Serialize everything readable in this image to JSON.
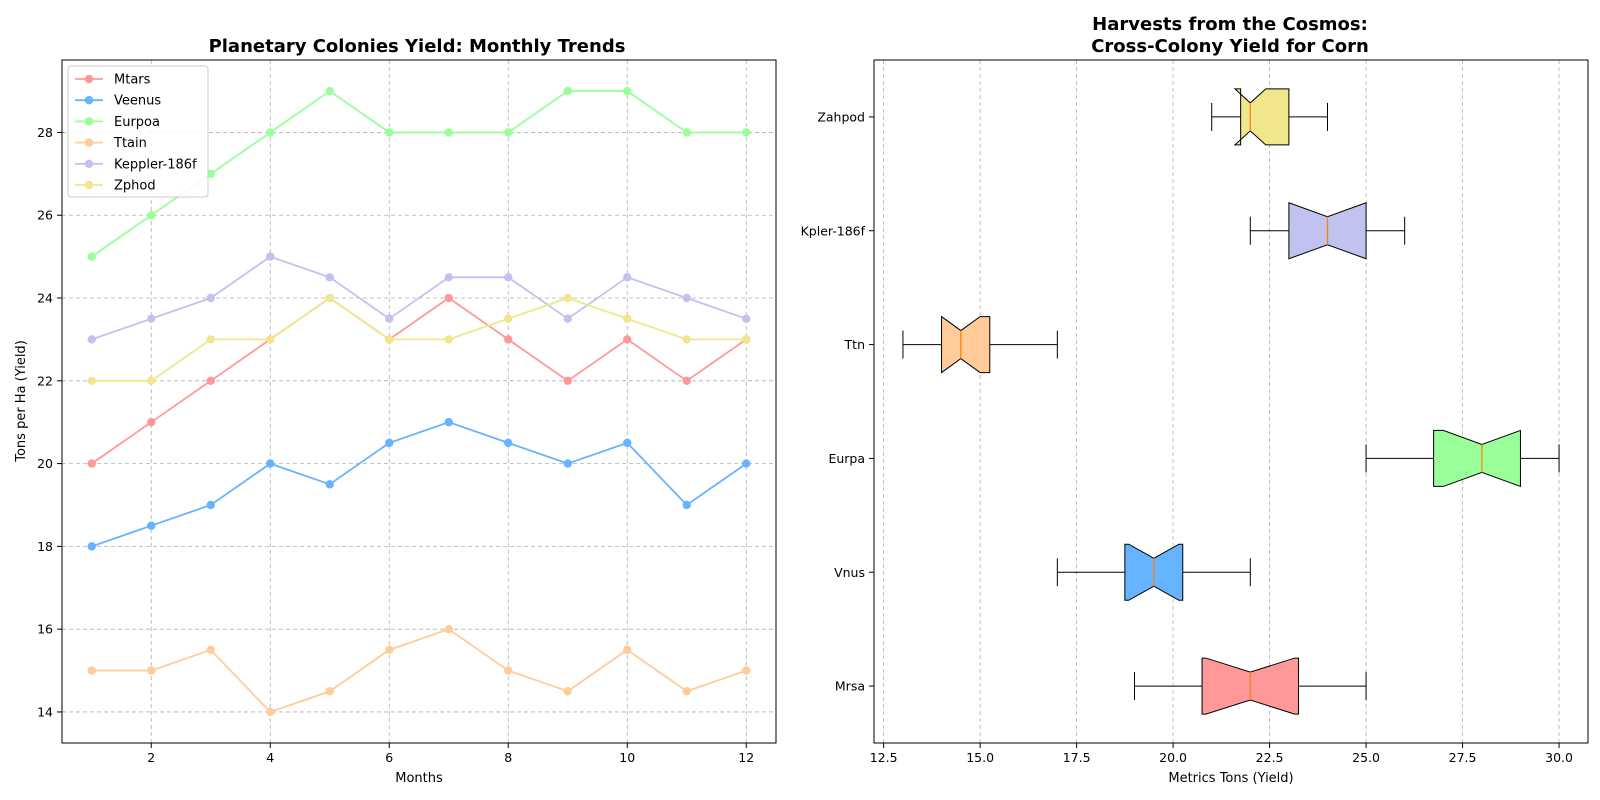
{
  "chart_data": [
    {
      "type": "line",
      "title": "Planetary Colonies Yield: Monthly Trends",
      "xlabel": "Months",
      "ylabel": "Tons per Ha (Yield)",
      "xlim": [
        0.5,
        12.5
      ],
      "ylim": [
        13.25,
        29.75
      ],
      "xticks": [
        2,
        4,
        6,
        8,
        10,
        12
      ],
      "yticks": [
        14,
        16,
        18,
        20,
        22,
        24,
        26,
        28
      ],
      "grid": true,
      "legend_position": "top-left",
      "x": [
        1,
        2,
        3,
        4,
        5,
        6,
        7,
        8,
        9,
        10,
        11,
        12
      ],
      "series": [
        {
          "name": "Mtars",
          "color": "#ff9999",
          "values": [
            20,
            21,
            22,
            23,
            24,
            23,
            24,
            23,
            22,
            23,
            22,
            23
          ]
        },
        {
          "name": "Veenus",
          "color": "#66b3ff",
          "values": [
            18,
            18.5,
            19,
            20,
            19.5,
            20.5,
            21,
            20.5,
            20,
            20.5,
            19,
            20
          ]
        },
        {
          "name": "Eurpoa",
          "color": "#99ff99",
          "values": [
            25,
            26,
            27,
            28,
            29,
            28,
            28,
            28,
            29,
            29,
            28,
            28
          ]
        },
        {
          "name": "Ttain",
          "color": "#ffcc99",
          "values": [
            15,
            15,
            15.5,
            14,
            14.5,
            15.5,
            16,
            15,
            14.5,
            15.5,
            14.5,
            15
          ]
        },
        {
          "name": "Keppler-186f",
          "color": "#c2c2f0",
          "values": [
            23,
            23.5,
            24,
            25,
            24.5,
            23.5,
            24.5,
            24.5,
            23.5,
            24.5,
            24,
            23.5
          ]
        },
        {
          "name": "Zphod",
          "color": "#f0e68c",
          "values": [
            22,
            22,
            23,
            23,
            24,
            23,
            23,
            23.5,
            24,
            23.5,
            23,
            23
          ]
        }
      ]
    },
    {
      "type": "box",
      "orientation": "horizontal",
      "notched": true,
      "title_lines": [
        "Harvests from the Cosmos:",
        "Cross-Colony Yield for Corn"
      ],
      "xlabel": "Metrics Tons (Yield)",
      "ylabel": "",
      "xlim": [
        12.25,
        30.75
      ],
      "xticks": [
        12.5,
        15.0,
        17.5,
        20.0,
        22.5,
        25.0,
        27.5,
        30.0
      ],
      "xtick_labels": [
        "12.5",
        "15.0",
        "17.5",
        "20.0",
        "22.5",
        "25.0",
        "27.5",
        "30.0"
      ],
      "grid": "x",
      "median_color": "#ff7f0e",
      "boxes": [
        {
          "label": "Mrsa",
          "color": "#ff9999",
          "min": 19,
          "q1": 20.75,
          "median": 22,
          "q3": 23.25,
          "max": 25,
          "notch_low": 20.85,
          "notch_high": 23.15
        },
        {
          "label": "Vnus",
          "color": "#66b3ff",
          "min": 17,
          "q1": 18.75,
          "median": 19.5,
          "q3": 20.25,
          "max": 22,
          "notch_low": 18.85,
          "notch_high": 20.15
        },
        {
          "label": "Eurpa",
          "color": "#99ff99",
          "min": 25,
          "q1": 26.75,
          "median": 28,
          "q3": 29,
          "max": 30,
          "notch_low": 27.0,
          "notch_high": 29.0
        },
        {
          "label": "Ttn",
          "color": "#ffcc99",
          "min": 13,
          "q1": 14,
          "median": 14.5,
          "q3": 15.25,
          "max": 17,
          "notch_low": 14.0,
          "notch_high": 15.0
        },
        {
          "label": "Kpler-186f",
          "color": "#c2c2f0",
          "min": 22,
          "q1": 23,
          "median": 24,
          "q3": 25,
          "max": 26,
          "notch_low": 23.0,
          "notch_high": 25.0
        },
        {
          "label": "Zahpod",
          "color": "#f0e68c",
          "min": 21,
          "q1": 21.75,
          "median": 22,
          "q3": 23,
          "max": 24,
          "notch_low": 21.6,
          "notch_high": 22.4
        }
      ]
    }
  ]
}
